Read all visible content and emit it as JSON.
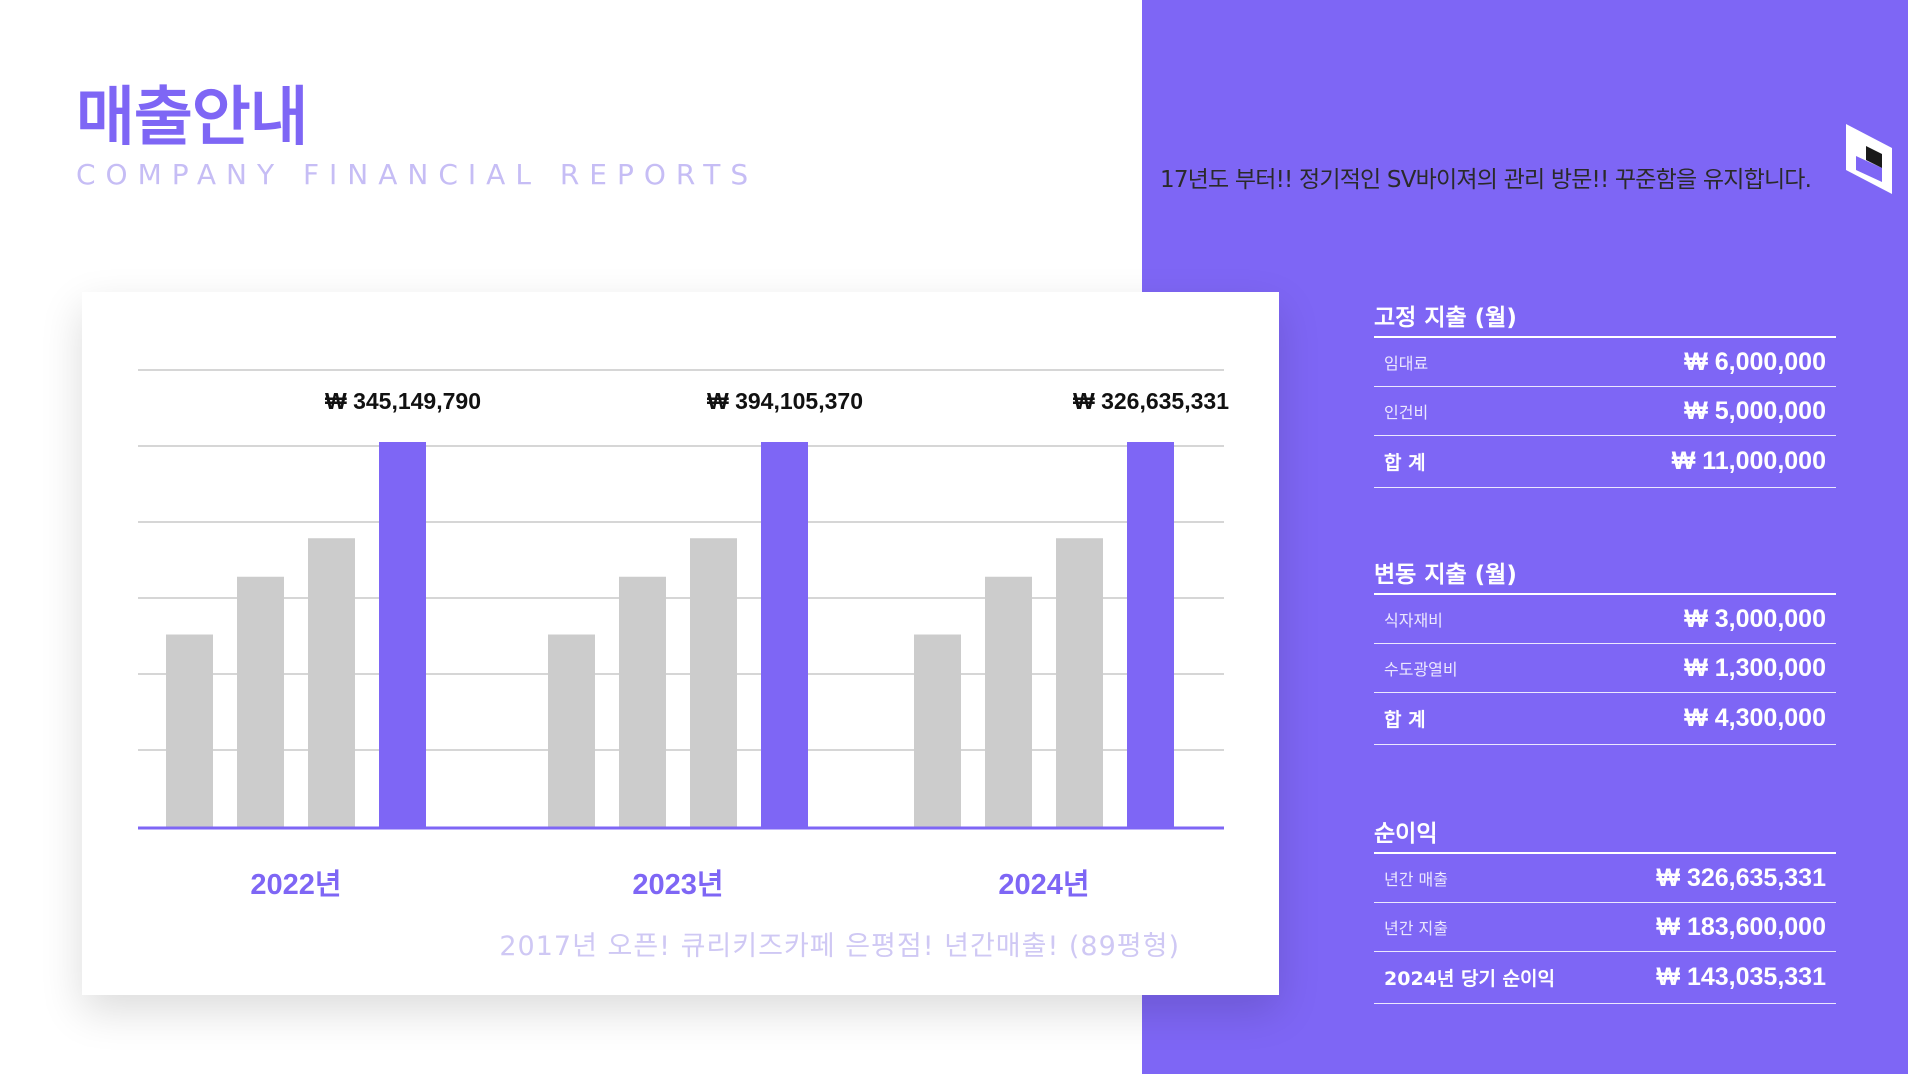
{
  "header": {
    "title": "매출안내",
    "subtitle": "COMPANY FINANCIAL REPORTS",
    "tagline": "17년도 부터!! 정기적인 SV바이져의 관리 방문!! 꾸준함을 유지합니다."
  },
  "colors": {
    "accent": "#7e66f5",
    "bar_gray": "#cccccc",
    "grid": "#c8c8c8"
  },
  "chart_data": {
    "type": "bar",
    "categories": [
      "2022년",
      "2023년",
      "2024년"
    ],
    "annotations": [
      "₩ 345,149,790",
      "₩ 394,105,370",
      "₩ 326,635,331"
    ],
    "bars_per_group": 4,
    "relative_heights": [
      [
        0.5,
        0.65,
        0.75,
        1.0
      ],
      [
        0.5,
        0.65,
        0.75,
        1.0
      ],
      [
        0.5,
        0.65,
        0.75,
        1.0
      ]
    ],
    "highlight_index": 3,
    "grid": true,
    "note": "2017년 오픈! 큐리키즈카페 은평점! 년간매출! (89평형)"
  },
  "fixed_costs": {
    "title": "고정 지출 (월)",
    "items": [
      {
        "label": "임대료",
        "value": "₩ 6,000,000"
      },
      {
        "label": "인건비",
        "value": "₩ 5,000,000"
      }
    ],
    "total_label": "합 계",
    "total_value": "₩ 11,000,000"
  },
  "variable_costs": {
    "title": "변동 지출 (월)",
    "items": [
      {
        "label": "식자재비",
        "value": "₩ 3,000,000"
      },
      {
        "label": "수도광열비",
        "value": "₩ 1,300,000"
      }
    ],
    "total_label": "합 계",
    "total_value": "₩  4,300,000"
  },
  "net_profit": {
    "title": "순이익",
    "items": [
      {
        "label": "년간 매출",
        "value": "₩ 326,635,331"
      },
      {
        "label": "년간 지출",
        "value": "₩ 183,600,000"
      },
      {
        "label": "2024년 당기 순이익",
        "value": "₩ 143,035,331"
      }
    ]
  }
}
